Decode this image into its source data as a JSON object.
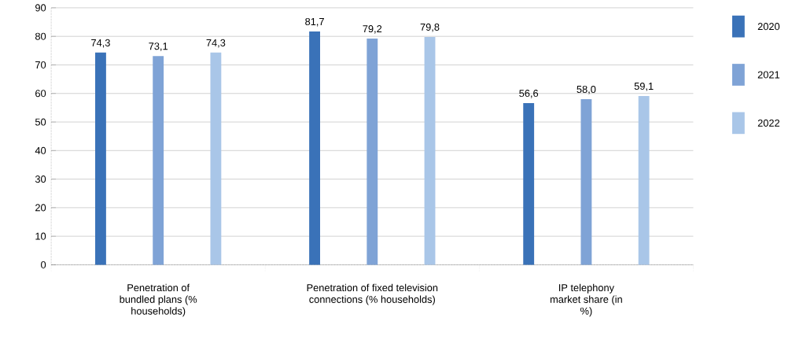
{
  "chart_data": {
    "type": "bar",
    "categories": [
      "Penetration of bundled plans (% households)",
      "Penetration of fixed television connections (% households)",
      "IP telephony market share (in %)"
    ],
    "series": [
      {
        "name": "2020",
        "color": "#3a72b8",
        "values": [
          74.3,
          81.7,
          56.6
        ],
        "value_labels": [
          "74,3",
          "81,7",
          "56,6"
        ]
      },
      {
        "name": "2021",
        "color": "#7fa3d6",
        "values": [
          73.1,
          79.2,
          58.0
        ],
        "value_labels": [
          "73,1",
          "79,2",
          "58,0"
        ]
      },
      {
        "name": "2022",
        "color": "#a9c6e8",
        "values": [
          74.3,
          79.8,
          59.1
        ],
        "value_labels": [
          "74,3",
          "79,8",
          "59,1"
        ]
      }
    ],
    "ylim": [
      0,
      90
    ],
    "yticks": [
      0,
      10,
      20,
      30,
      40,
      50,
      60,
      70,
      80,
      90
    ],
    "grid": "y",
    "legend": "right"
  }
}
